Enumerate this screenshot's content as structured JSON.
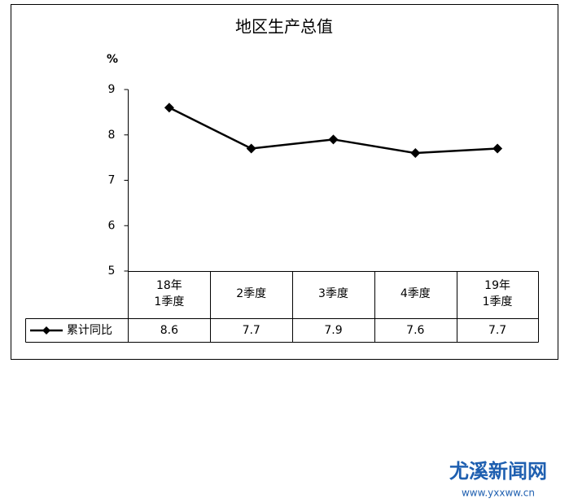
{
  "chart_data": {
    "type": "line",
    "title": "地区生产总值",
    "y_label": "%",
    "categories": [
      "18年\n1季度",
      "2季度",
      "3季度",
      "4季度",
      "19年\n1季度"
    ],
    "series": [
      {
        "name": "累计同比",
        "color": "#000000",
        "values": [
          8.6,
          7.7,
          7.9,
          7.6,
          7.7
        ]
      }
    ],
    "ylim": [
      5,
      9
    ],
    "yticks": [
      5,
      6,
      7,
      8,
      9
    ],
    "grid": false,
    "data_table": true
  },
  "watermark": {
    "name": "尤溪新闻网",
    "url": "www.yxxww.cn"
  }
}
